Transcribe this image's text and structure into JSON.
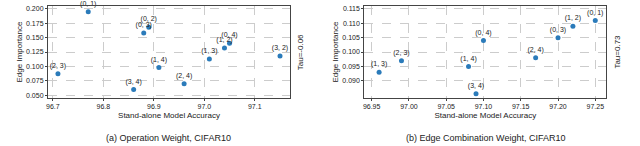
{
  "chart_data": [
    {
      "type": "scatter",
      "title": "(a) Operation Weight, CIFAR10",
      "x_label": "Stand-alone Model Accuracy",
      "y_label": "Edge Importance",
      "annotations": [
        "Tau=-0.06"
      ],
      "labels": [
        "(0, 1)",
        "(0, 2)",
        "(0, 3)",
        "(0, 4)",
        "(1, 2)",
        "(1, 3)",
        "(3, 2)",
        "(1, 4)",
        "(2, 4)",
        "(3, 4)",
        "(2, 3)"
      ],
      "x": [
        96.77,
        96.89,
        96.88,
        97.05,
        97.04,
        97.01,
        97.15,
        96.91,
        96.96,
        96.86,
        96.71
      ],
      "values": [
        0.195,
        0.168,
        0.158,
        0.14,
        0.132,
        0.113,
        0.118,
        0.098,
        0.07,
        0.06,
        0.087
      ],
      "color": "#2b7bba",
      "marker": "circle",
      "grid": true,
      "xlim": [
        96.69,
        97.17
      ],
      "ylim": [
        0.045,
        0.205
      ],
      "xticks": [
        96.7,
        96.8,
        96.9,
        {
          "value": 97.0,
          "label": "97.0"
        },
        97.1
      ],
      "yticks": [
        {
          "value": 0.05,
          "label": "0.050"
        },
        0.075,
        {
          "value": 0.1,
          "label": "0.100"
        },
        0.125,
        {
          "value": 0.15,
          "label": "0.150"
        },
        0.175,
        {
          "value": 0.2,
          "label": "0.200"
        }
      ]
    },
    {
      "type": "scatter",
      "title": "(b) Edge Combination Weight, CIFAR10",
      "x_label": "Stand-alone Model Accuracy",
      "y_label": "Edge Importance",
      "annotations": [
        "Tau=0.73"
      ],
      "labels": [
        "(0, 1)",
        "(1, 2)",
        "(0, 3)",
        "(2, 4)",
        "(0, 4)",
        "(1, 4)",
        "(3, 4)",
        "(2, 3)",
        "(1, 3)"
      ],
      "x": [
        97.25,
        97.22,
        97.2,
        97.17,
        97.1,
        97.08,
        97.09,
        96.99,
        96.96
      ],
      "values": [
        0.111,
        0.109,
        0.105,
        0.098,
        0.104,
        0.095,
        0.0855,
        0.097,
        0.093
      ],
      "color": "#2b7bba",
      "marker": "circle",
      "grid": true,
      "xlim": [
        96.94,
        97.265
      ],
      "ylim": [
        0.084,
        0.116
      ],
      "xticks": [
        96.95,
        {
          "value": 97.0,
          "label": "97.00"
        },
        97.05,
        {
          "value": 97.1,
          "label": "97.10"
        },
        97.15,
        {
          "value": 97.2,
          "label": "97.20"
        },
        97.25
      ],
      "yticks": [
        {
          "value": 0.09,
          "label": "0.090"
        },
        0.095,
        {
          "value": 0.1,
          "label": "0.100"
        },
        0.105,
        {
          "value": 0.11,
          "label": "0.110"
        },
        0.115
      ]
    }
  ]
}
